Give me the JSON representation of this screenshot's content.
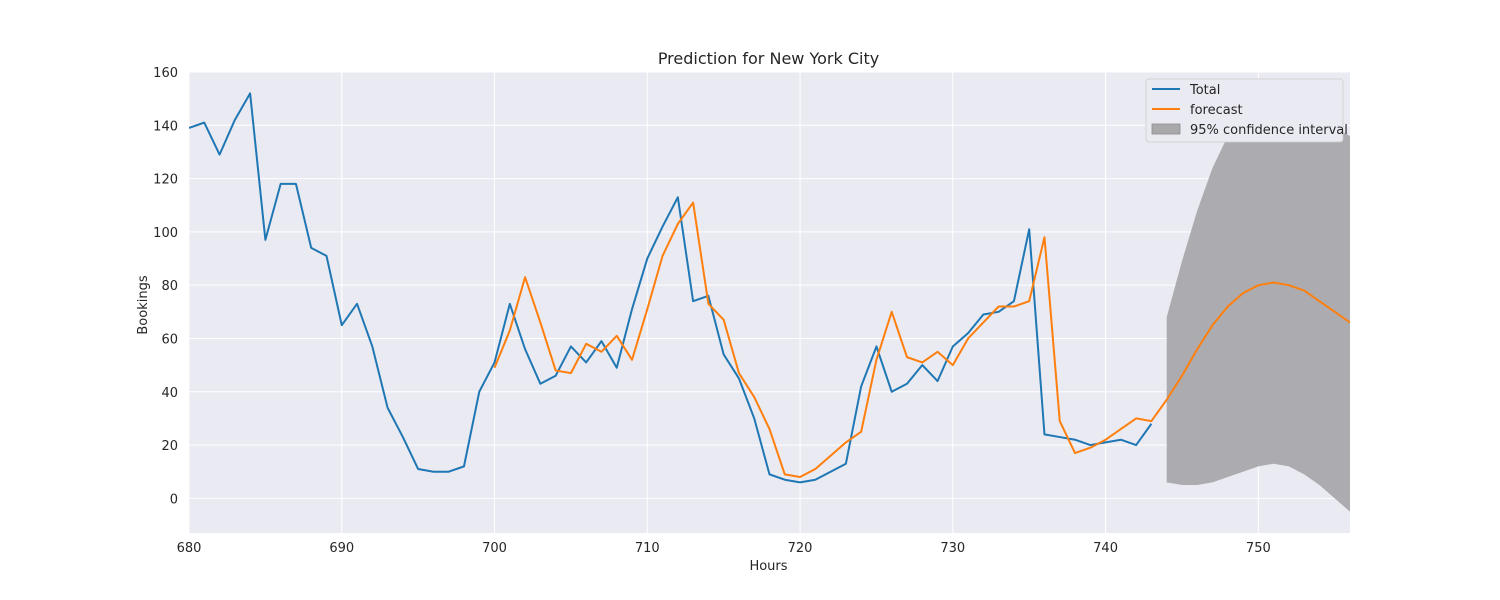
{
  "chart_data": {
    "type": "line",
    "title": "Prediction for New York City",
    "xlabel": "Hours",
    "ylabel": "Bookings",
    "xlim": [
      680,
      756
    ],
    "ylim": [
      -13,
      160
    ],
    "xticks": [
      680,
      690,
      700,
      710,
      720,
      730,
      740,
      750
    ],
    "yticks": [
      0,
      20,
      40,
      60,
      80,
      100,
      120,
      140,
      160
    ],
    "grid": true,
    "legend_position": "top-right",
    "colors": {
      "plot_background": "#eaeaf2",
      "grid": "#ffffff",
      "total": "#1f77b4",
      "forecast": "#ff7f0e",
      "confidence_fill": "#a9a9ac"
    },
    "series": [
      {
        "name": "Total",
        "x": [
          680,
          681,
          682,
          683,
          684,
          685,
          686,
          687,
          688,
          689,
          690,
          691,
          692,
          693,
          694,
          695,
          696,
          697,
          698,
          699,
          700,
          701,
          702,
          703,
          704,
          705,
          706,
          707,
          708,
          709,
          710,
          711,
          712,
          713,
          714,
          715,
          716,
          717,
          718,
          719,
          720,
          721,
          722,
          723,
          724,
          725,
          726,
          727,
          728,
          729,
          730,
          731,
          732,
          733,
          734,
          735,
          736,
          737,
          738,
          739,
          740,
          741,
          742,
          743
        ],
        "values": [
          139,
          141,
          129,
          142,
          152,
          97,
          118,
          118,
          94,
          91,
          65,
          73,
          57,
          34,
          23,
          11,
          10,
          10,
          12,
          40,
          51,
          73,
          56,
          43,
          46,
          57,
          51,
          59,
          49,
          71,
          90,
          102,
          113,
          74,
          76,
          54,
          45,
          30,
          9,
          7,
          6,
          7,
          10,
          13,
          42,
          57,
          40,
          43,
          50,
          44,
          57,
          62,
          69,
          70,
          74,
          101,
          24,
          23,
          22,
          20,
          21,
          22,
          20,
          28
        ]
      },
      {
        "name": "forecast",
        "x": [
          700,
          701,
          702,
          703,
          704,
          705,
          706,
          707,
          708,
          709,
          710,
          711,
          712,
          713,
          714,
          715,
          716,
          717,
          718,
          719,
          720,
          721,
          722,
          723,
          724,
          725,
          726,
          727,
          728,
          729,
          730,
          731,
          732,
          733,
          734,
          735,
          736,
          737,
          738,
          739,
          740,
          741,
          742,
          743,
          744,
          745,
          746,
          747,
          748,
          749,
          750,
          751,
          752,
          753,
          754,
          755,
          756
        ],
        "values": [
          49,
          63,
          83,
          66,
          48,
          47,
          58,
          55,
          61,
          52,
          71,
          91,
          103,
          111,
          73,
          67,
          47,
          38,
          26,
          9,
          8,
          11,
          16,
          21,
          25,
          52,
          70,
          53,
          51,
          55,
          50,
          60,
          66,
          72,
          72,
          74,
          98,
          29,
          17,
          19,
          22,
          26,
          30,
          29,
          37,
          46,
          56,
          65,
          72,
          77,
          80,
          81,
          80,
          78,
          74,
          70,
          66
        ]
      }
    ],
    "confidence_interval": {
      "name": "95% confidence interval",
      "x": [
        744,
        745,
        746,
        747,
        748,
        749,
        750,
        751,
        752,
        753,
        754,
        755,
        756
      ],
      "lower": [
        6,
        5,
        5,
        6,
        8,
        10,
        12,
        13,
        12,
        9,
        5,
        0,
        -5
      ],
      "upper": [
        68,
        89,
        108,
        124,
        136,
        145,
        149,
        150,
        148,
        145,
        142,
        139,
        136
      ]
    }
  }
}
